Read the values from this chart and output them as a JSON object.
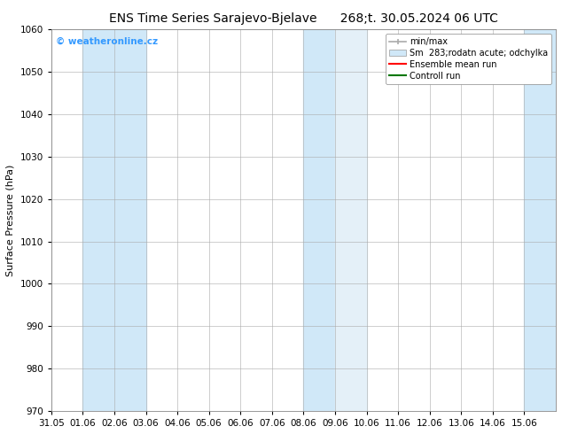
{
  "title_left": "ENS Time Series Sarajevo-Bjelave",
  "title_right": "268;t. 30.05.2024 06 UTC",
  "xlabel": "",
  "ylabel": "Surface Pressure (hPa)",
  "ylim": [
    970,
    1060
  ],
  "yticks": [
    970,
    980,
    990,
    1000,
    1010,
    1020,
    1030,
    1040,
    1050,
    1060
  ],
  "xlim_start": 0,
  "xlim_end": 16,
  "xtick_labels": [
    "31.05",
    "01.06",
    "02.06",
    "03.06",
    "04.06",
    "05.06",
    "06.06",
    "07.06",
    "08.06",
    "09.06",
    "10.06",
    "11.06",
    "12.06",
    "13.06",
    "14.06",
    "15.06"
  ],
  "shaded_bands": [
    {
      "x_start": 1,
      "x_end": 3,
      "color": "#d0e8f8"
    },
    {
      "x_start": 8,
      "x_end": 9,
      "color": "#d0e8f8"
    },
    {
      "x_start": 9,
      "x_end": 10,
      "color": "#e4f0f8"
    },
    {
      "x_start": 15,
      "x_end": 16,
      "color": "#d0e8f8"
    }
  ],
  "watermark_text": "© weatheronline.cz",
  "watermark_color": "#3399ff",
  "legend_labels": [
    "min/max",
    "283;rodatn acute; odchylka",
    "Ensemble mean run",
    "Controll run"
  ],
  "legend_colors": [
    "#aaaaaa",
    "#d0e8f8",
    "#ff0000",
    "#007700"
  ],
  "background_color": "#ffffff",
  "plot_bg_color": "#ffffff",
  "grid_color": "#aaaaaa",
  "title_fontsize": 10,
  "axis_fontsize": 8,
  "tick_fontsize": 7.5,
  "sm_label": "Sm"
}
